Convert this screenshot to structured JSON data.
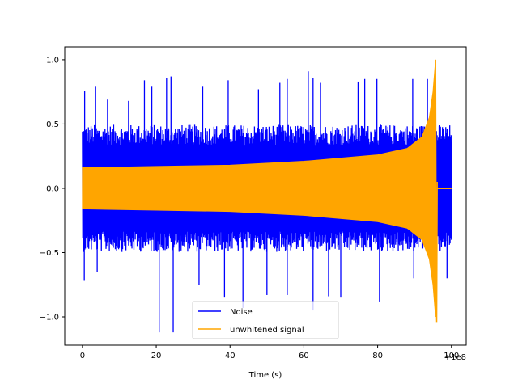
{
  "chart_data": {
    "type": "line",
    "title": "",
    "xlabel": "Time (s)",
    "ylabel": "",
    "x_offset_label": "+1e8",
    "xlim": [
      -4.8,
      104.0
    ],
    "ylim": [
      -1.22,
      1.1
    ],
    "x_ticks": [
      0,
      20,
      40,
      60,
      80,
      100
    ],
    "x_tick_labels": [
      "0",
      "20",
      "40",
      "60",
      "80",
      "100"
    ],
    "y_ticks": [
      -1.0,
      -0.5,
      0.0,
      0.5,
      1.0
    ],
    "y_tick_labels": [
      "−1.0",
      "−0.5",
      "0.0",
      "0.5",
      "1.0"
    ],
    "grid": false,
    "legend_position": "lower center",
    "series": [
      {
        "name": "Noise",
        "color": "#0000ff",
        "x_range": [
          0,
          100
        ],
        "baseline_band": [
          -0.45,
          0.45
        ],
        "peak_values": [
          {
            "x": 0.6,
            "y": 0.76
          },
          {
            "x": 3.5,
            "y": 0.79
          },
          {
            "x": 6.8,
            "y": 0.69
          },
          {
            "x": 12.5,
            "y": 0.68
          },
          {
            "x": 16.8,
            "y": 0.84
          },
          {
            "x": 18.8,
            "y": 0.79
          },
          {
            "x": 22.8,
            "y": 0.86
          },
          {
            "x": 24.0,
            "y": 0.87
          },
          {
            "x": 32.6,
            "y": 0.79
          },
          {
            "x": 39.5,
            "y": 0.84
          },
          {
            "x": 47.7,
            "y": 0.77
          },
          {
            "x": 53.5,
            "y": 0.82
          },
          {
            "x": 55.5,
            "y": 0.85
          },
          {
            "x": 61.2,
            "y": 0.91
          },
          {
            "x": 62.5,
            "y": 0.86
          },
          {
            "x": 64.5,
            "y": 0.82
          },
          {
            "x": 74.7,
            "y": 0.83
          },
          {
            "x": 76.5,
            "y": 0.85
          },
          {
            "x": 79.8,
            "y": 0.85
          },
          {
            "x": 89.5,
            "y": 0.85
          },
          {
            "x": 93.5,
            "y": 0.85
          }
        ],
        "trough_values": [
          {
            "x": 0.5,
            "y": -0.72
          },
          {
            "x": 4.0,
            "y": -0.65
          },
          {
            "x": 20.8,
            "y": -1.12
          },
          {
            "x": 24.6,
            "y": -1.12
          },
          {
            "x": 31.6,
            "y": -0.75
          },
          {
            "x": 38.5,
            "y": -0.85
          },
          {
            "x": 43.5,
            "y": -0.93
          },
          {
            "x": 50.0,
            "y": -0.83
          },
          {
            "x": 55.5,
            "y": -0.83
          },
          {
            "x": 62.5,
            "y": -0.95
          },
          {
            "x": 66.7,
            "y": -0.84
          },
          {
            "x": 70.0,
            "y": -0.85
          },
          {
            "x": 80.5,
            "y": -0.88
          },
          {
            "x": 89.8,
            "y": -0.7
          },
          {
            "x": 98.8,
            "y": -0.7
          }
        ]
      },
      {
        "name": "unwhitened signal",
        "color": "#ffa500",
        "x_range": [
          0,
          96
        ],
        "envelope": [
          {
            "x": 0,
            "y": 0.16
          },
          {
            "x": 20,
            "y": 0.17
          },
          {
            "x": 40,
            "y": 0.18
          },
          {
            "x": 60,
            "y": 0.21
          },
          {
            "x": 80,
            "y": 0.26
          },
          {
            "x": 88,
            "y": 0.31
          },
          {
            "x": 92,
            "y": 0.4
          },
          {
            "x": 94,
            "y": 0.55
          },
          {
            "x": 95,
            "y": 0.75
          },
          {
            "x": 95.7,
            "y": 1.0
          },
          {
            "x": 96.0,
            "y": -1.04
          }
        ],
        "ringdown": {
          "x_range": [
            96.2,
            100
          ],
          "amplitude": 0.01
        }
      }
    ]
  }
}
